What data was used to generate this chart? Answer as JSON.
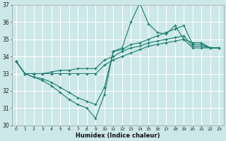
{
  "xlabel": "Humidex (Indice chaleur)",
  "bg_color": "#cce8e8",
  "line_color": "#1a7a6e",
  "grid_color": "#b0d4d4",
  "xlim": [
    -0.5,
    23.5
  ],
  "ylim": [
    30,
    37
  ],
  "yticks": [
    30,
    31,
    32,
    33,
    34,
    35,
    36,
    37
  ],
  "xticks": [
    0,
    1,
    2,
    3,
    4,
    5,
    6,
    7,
    8,
    9,
    10,
    11,
    12,
    13,
    14,
    15,
    16,
    17,
    18,
    19,
    20,
    21,
    22,
    23
  ],
  "series": [
    [
      33.7,
      33.0,
      33.0,
      33.0,
      33.0,
      33.0,
      33.0,
      33.0,
      33.0,
      33.0,
      33.5,
      33.8,
      34.0,
      34.2,
      34.4,
      34.6,
      34.7,
      34.8,
      34.9,
      35.0,
      34.5,
      34.5,
      34.5,
      34.5
    ],
    [
      33.7,
      33.0,
      33.0,
      33.0,
      33.1,
      33.2,
      33.2,
      33.3,
      33.3,
      33.3,
      33.8,
      34.0,
      34.3,
      34.5,
      34.6,
      34.8,
      34.9,
      35.0,
      35.1,
      35.2,
      34.6,
      34.6,
      34.5,
      34.5
    ],
    [
      33.7,
      33.0,
      32.8,
      32.7,
      32.5,
      32.2,
      31.9,
      31.6,
      31.4,
      31.2,
      32.2,
      34.3,
      34.5,
      36.0,
      37.1,
      35.9,
      35.4,
      35.3,
      35.8,
      35.0,
      34.8,
      34.8,
      34.5,
      34.5
    ],
    [
      33.7,
      33.0,
      32.8,
      32.6,
      32.3,
      31.9,
      31.5,
      31.2,
      31.0,
      30.4,
      31.8,
      34.3,
      34.4,
      34.7,
      34.8,
      35.0,
      35.2,
      35.4,
      35.6,
      35.8,
      34.7,
      34.7,
      34.5,
      34.5
    ]
  ]
}
